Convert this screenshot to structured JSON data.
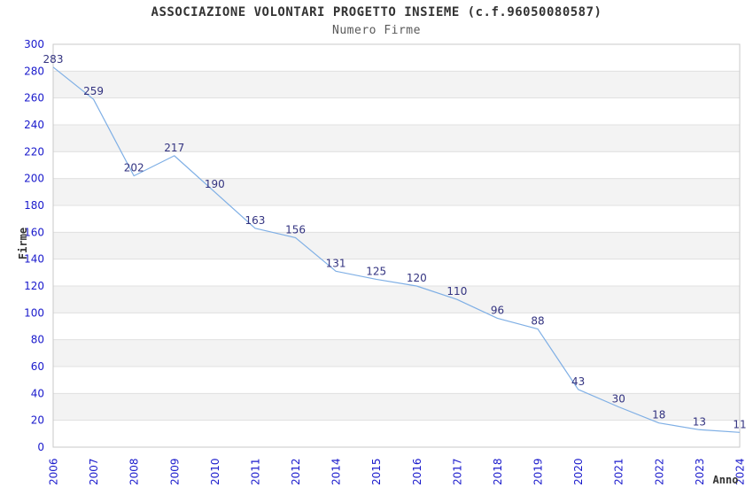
{
  "header": {
    "title": "ASSOCIAZIONE VOLONTARI PROGETTO INSIEME (c.f.96050080587)",
    "subtitle": "Numero Firme"
  },
  "chart_data": {
    "type": "line",
    "title": "ASSOCIAZIONE VOLONTARI PROGETTO INSIEME (c.f.96050080587)",
    "subtitle": "Numero Firme",
    "xlabel": "Anno",
    "ylabel": "Firme",
    "categories": [
      "2006",
      "2007",
      "2008",
      "2009",
      "2010",
      "2011",
      "2012",
      "2014",
      "2015",
      "2016",
      "2017",
      "2018",
      "2019",
      "2020",
      "2021",
      "2022",
      "2023",
      "2024"
    ],
    "values": [
      283,
      259,
      202,
      217,
      190,
      163,
      156,
      131,
      125,
      120,
      110,
      96,
      88,
      43,
      30,
      18,
      13,
      11
    ],
    "ylim": [
      0,
      300
    ],
    "ytick_step": 20,
    "grid": true,
    "alternating_bands": true,
    "legend": "none",
    "colors": {
      "line": "#7fafe5",
      "value_label": "#333380",
      "tick_label": "#1a1acc",
      "axis_title": "#333333",
      "band": "#f3f3f3",
      "grid": "#e0e0e0",
      "border": "#c9c9c9",
      "background": "#ffffff"
    }
  }
}
